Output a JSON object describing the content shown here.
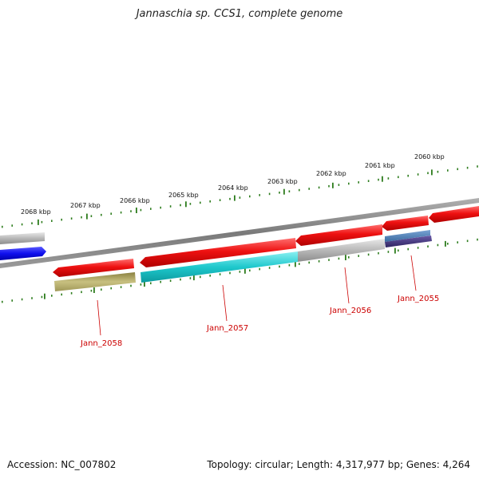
{
  "title": "Jannaschia sp. CCS1, complete genome",
  "footer": {
    "accession": "Accession: NC_007802",
    "topology": "Topology: circular; Length: 4,317,977 bp; Genes: 4,264"
  },
  "colors": {
    "backbone": "#8c8c8c",
    "tick": "#2e7d1e",
    "gene_forward": "#ee1111",
    "gene_cds_cyan": "#1ec8cc",
    "gene_grey": "#b8b8b8",
    "gene_olive": "#b8b070",
    "gene_blue": "#1010ee",
    "gene_steel": "#4a7ab0",
    "gene_purple": "#4b3f8a",
    "label_red": "#cc0000"
  },
  "ruler": {
    "outer_labels": [
      "2068 kbp",
      "2067 kbp",
      "2066 kbp",
      "2065 kbp",
      "2064 kbp",
      "2063 kbp",
      "2062 kbp",
      "2061 kbp",
      "2060 kbp"
    ]
  },
  "genes": {
    "labels": [
      "Jann_2058",
      "Jann_2057",
      "Jann_2056",
      "Jann_2055"
    ]
  }
}
